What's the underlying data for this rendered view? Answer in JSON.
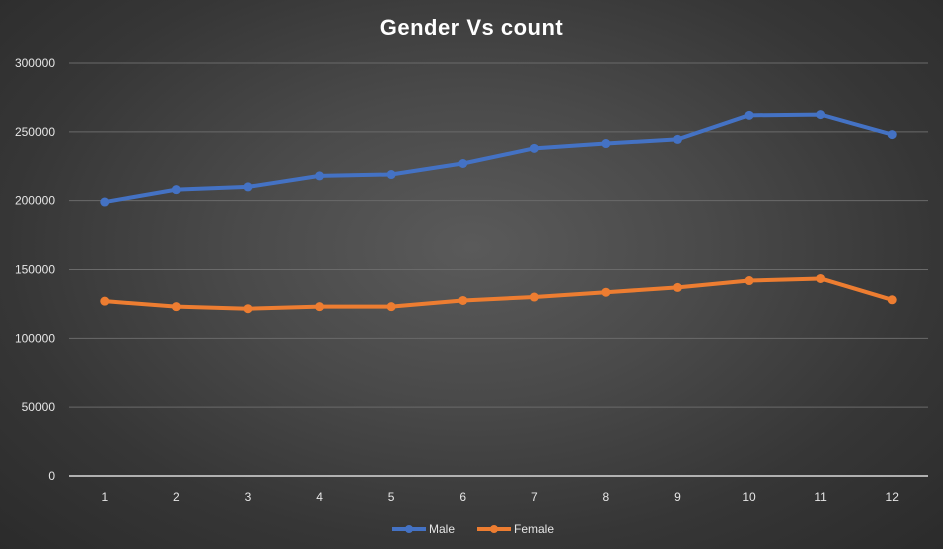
{
  "chart_data": {
    "type": "line",
    "title": "Gender Vs count",
    "xlabel": "",
    "ylabel": "",
    "x": [
      1,
      2,
      3,
      4,
      5,
      6,
      7,
      8,
      9,
      10,
      11,
      12
    ],
    "x_tick_labels": [
      "1",
      "2",
      "3",
      "4",
      "5",
      "6",
      "7",
      "8",
      "9",
      "10",
      "11",
      "12"
    ],
    "ylim": [
      0,
      300000
    ],
    "y_ticks": [
      0,
      50000,
      100000,
      150000,
      200000,
      250000,
      300000
    ],
    "y_tick_labels": [
      "0",
      "50000",
      "100000",
      "150000",
      "200000",
      "250000",
      "300000"
    ],
    "grid": true,
    "legend_position": "bottom",
    "series": [
      {
        "name": "Male",
        "color": "#4472c4",
        "values": [
          199000,
          208000,
          210000,
          218000,
          219000,
          227000,
          238000,
          241500,
          244500,
          262000,
          262500,
          248000
        ]
      },
      {
        "name": "Female",
        "color": "#ed7d31",
        "values": [
          127000,
          123000,
          121500,
          123000,
          123000,
          127500,
          130000,
          133500,
          137000,
          142000,
          143500,
          128000
        ]
      }
    ]
  }
}
